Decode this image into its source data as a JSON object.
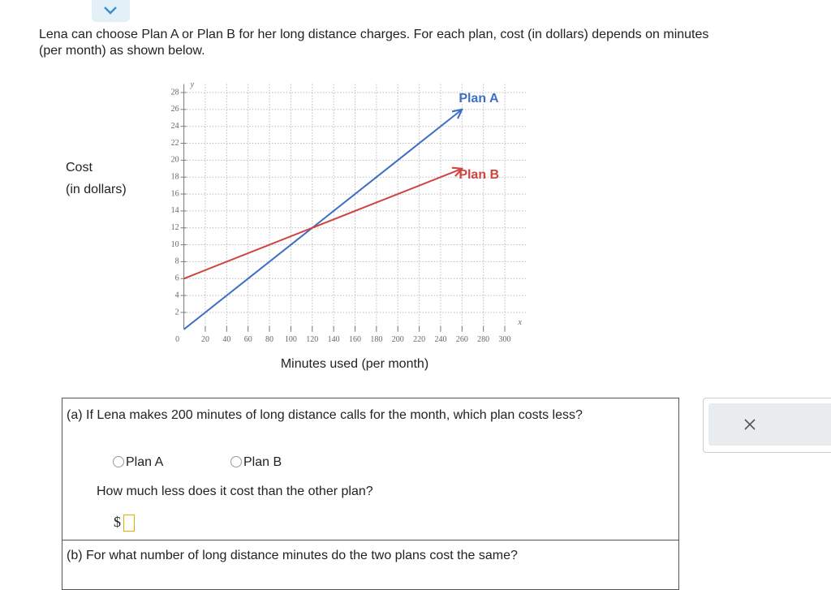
{
  "header": {
    "problem_line_1": "Lena can choose Plan A or Plan B for her long distance charges. For each plan, cost (in dollars) depends on minutes",
    "problem_line_2": "(per month) as shown below."
  },
  "chart_data": {
    "type": "line",
    "y_label": [
      "Cost",
      "(in dollars)"
    ],
    "x_label": "Minutes used (per month)",
    "x_symbol": "x",
    "y_symbol": "y",
    "origin_label": "0",
    "xlim": [
      0,
      320
    ],
    "ylim": [
      0,
      29
    ],
    "xticks": [
      20,
      40,
      60,
      80,
      100,
      120,
      140,
      160,
      180,
      200,
      220,
      240,
      260,
      280,
      300
    ],
    "yticks": [
      2,
      4,
      6,
      8,
      10,
      12,
      14,
      16,
      18,
      20,
      22,
      24,
      26,
      28
    ],
    "grid": true,
    "series": [
      {
        "name": "Plan A",
        "color": "#3f6fc4",
        "x": [
          0,
          260
        ],
        "values": [
          0,
          26
        ]
      },
      {
        "name": "Plan B",
        "color": "#d0443f",
        "x": [
          0,
          260
        ],
        "values": [
          6,
          19
        ]
      }
    ]
  },
  "part_a": {
    "label": "(a)",
    "question": "If Lena makes 200 minutes of long distance calls for the month, which plan costs less?",
    "options": [
      "Plan A",
      "Plan B"
    ],
    "followup": "How much less does it cost than the other plan?",
    "currency": "$"
  },
  "part_b": {
    "label": "(b)",
    "question": "For what number of long distance minutes do the two plans cost the same?"
  }
}
